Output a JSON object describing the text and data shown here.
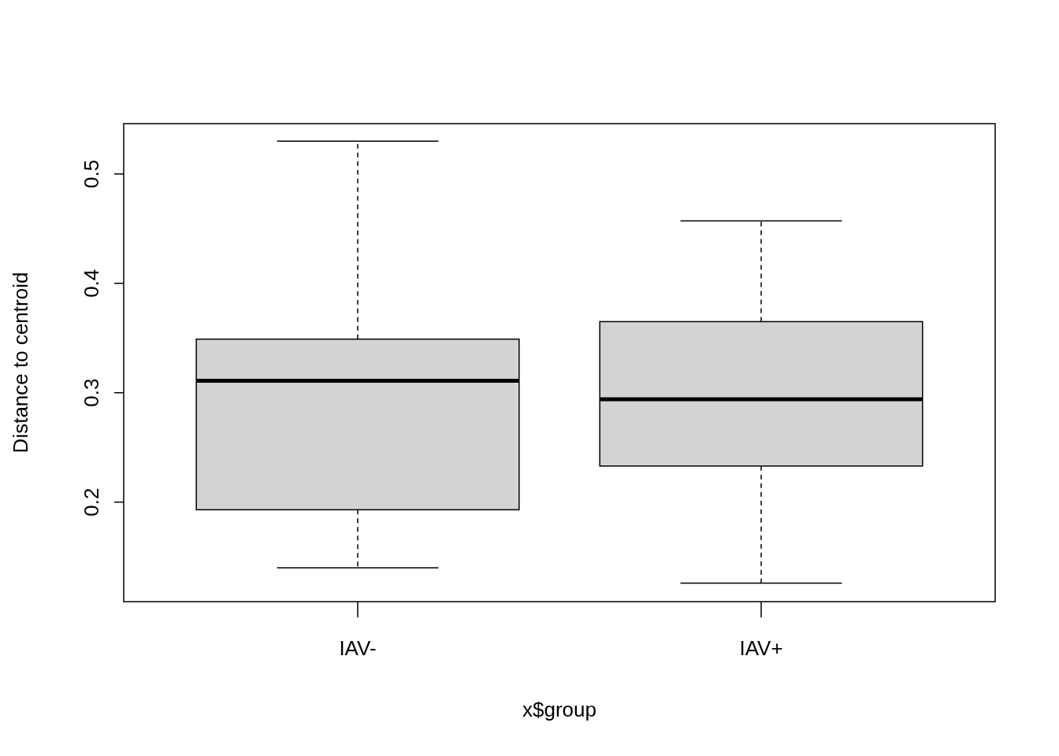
{
  "chart_data": {
    "type": "box",
    "xlabel": "x$group",
    "ylabel": "Distance to centroid",
    "categories": [
      "IAV-",
      "IAV+"
    ],
    "color": "#d3d3d3",
    "ylim": [
      0.109,
      0.546
    ],
    "yticks": [
      0.2,
      0.3,
      0.4,
      0.5
    ],
    "grid": false,
    "boxes": [
      {
        "low": 0.14,
        "q1": 0.193,
        "median": 0.311,
        "q3": 0.349,
        "high": 0.53
      },
      {
        "low": 0.126,
        "q1": 0.233,
        "median": 0.294,
        "q3": 0.365,
        "high": 0.457
      }
    ]
  }
}
